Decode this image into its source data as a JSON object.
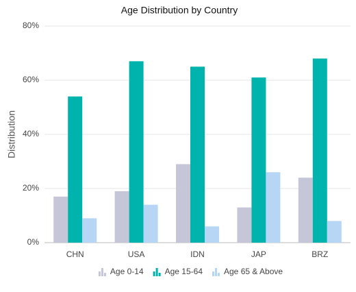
{
  "chart_data": {
    "type": "bar",
    "title": "Age Distribution by Country",
    "y_label": "Distribution",
    "categories": [
      "CHN",
      "USA",
      "IDN",
      "JAP",
      "BRZ"
    ],
    "series": [
      {
        "name": "Age 0-14",
        "color": "#c5c7d9",
        "values": [
          17,
          19,
          29,
          13,
          24
        ]
      },
      {
        "name": "Age 15-64",
        "color": "#00b3ad",
        "values": [
          54,
          67,
          65,
          61,
          68
        ]
      },
      {
        "name": "Age 65 & Above",
        "color": "#b7d5f4",
        "values": [
          9,
          14,
          6,
          26,
          8
        ]
      }
    ],
    "ylim": [
      0,
      80
    ],
    "yticks": [
      {
        "value": 0,
        "label": "0%"
      },
      {
        "value": 20,
        "label": "20%"
      },
      {
        "value": 40,
        "label": "40%"
      },
      {
        "value": 60,
        "label": "60%"
      },
      {
        "value": 80,
        "label": "80%"
      }
    ],
    "grid": true,
    "legend": "bottom"
  }
}
